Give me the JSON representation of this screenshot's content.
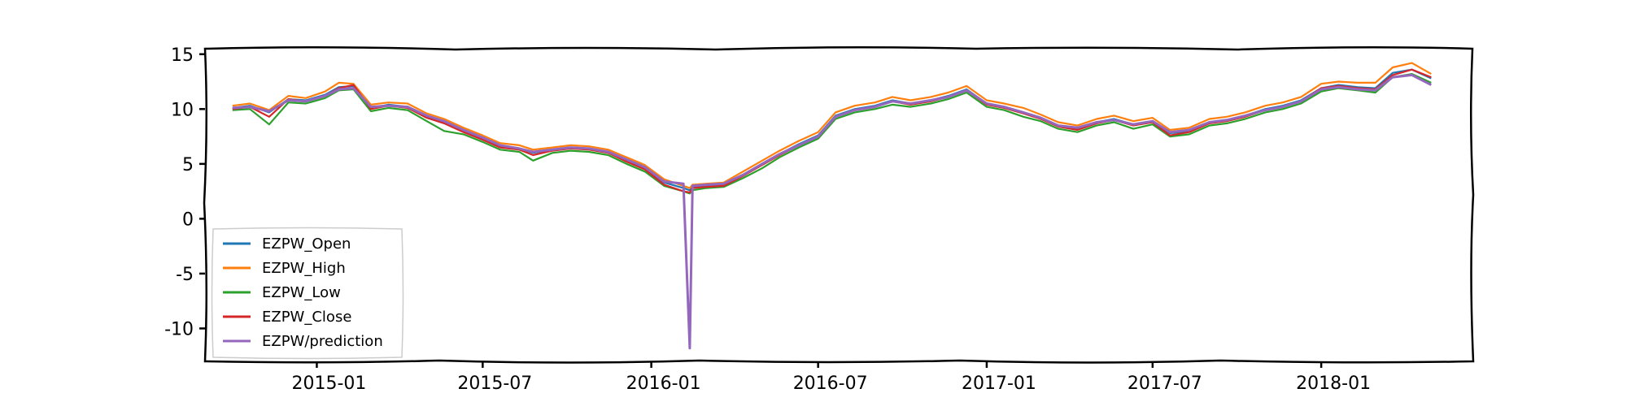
{
  "chart_data": {
    "type": "line",
    "title": "",
    "xlabel": "",
    "ylabel": "",
    "xlim": [
      "2014-09-01",
      "2018-06-15"
    ],
    "ylim": [
      -13,
      15.5
    ],
    "x_ticks": [
      "2015-01",
      "2015-07",
      "2016-01",
      "2016-07",
      "2017-01",
      "2017-07",
      "2018-01"
    ],
    "y_ticks": [
      "15",
      "10",
      "5",
      "0",
      "-5",
      "-10"
    ],
    "y_tick_values": [
      15,
      10,
      5,
      0,
      -5,
      -10
    ],
    "grid": false,
    "legend_position": "lower-left",
    "x": [
      "2014-10-01",
      "2014-10-20",
      "2014-11-10",
      "2014-12-01",
      "2014-12-20",
      "2015-01-10",
      "2015-01-25",
      "2015-02-10",
      "2015-03-01",
      "2015-03-20",
      "2015-04-10",
      "2015-05-01",
      "2015-05-20",
      "2015-06-10",
      "2015-07-01",
      "2015-07-20",
      "2015-08-10",
      "2015-08-25",
      "2015-09-15",
      "2015-10-05",
      "2015-10-25",
      "2015-11-15",
      "2015-12-05",
      "2015-12-25",
      "2016-01-15",
      "2016-02-05",
      "2016-02-12",
      "2016-02-15",
      "2016-03-01",
      "2016-03-20",
      "2016-04-10",
      "2016-05-01",
      "2016-05-20",
      "2016-06-10",
      "2016-07-01",
      "2016-07-20",
      "2016-08-10",
      "2016-09-01",
      "2016-09-20",
      "2016-10-10",
      "2016-11-01",
      "2016-11-20",
      "2016-12-10",
      "2017-01-01",
      "2017-01-20",
      "2017-02-10",
      "2017-03-01",
      "2017-03-20",
      "2017-04-10",
      "2017-05-01",
      "2017-05-20",
      "2017-06-10",
      "2017-07-01",
      "2017-07-20",
      "2017-08-10",
      "2017-09-01",
      "2017-09-20",
      "2017-10-10",
      "2017-11-01",
      "2017-11-20",
      "2017-12-10",
      "2018-01-01",
      "2018-01-20",
      "2018-02-10",
      "2018-03-01",
      "2018-03-20",
      "2018-04-10",
      "2018-05-01"
    ],
    "series": [
      {
        "name": "EZPW_Open",
        "color": "#1f77b4",
        "values": [
          10.1,
          10.3,
          9.7,
          10.9,
          10.8,
          11.3,
          12.0,
          12.1,
          10.1,
          10.4,
          10.2,
          9.3,
          8.8,
          8.0,
          7.3,
          6.6,
          6.4,
          6.0,
          6.3,
          6.5,
          6.4,
          6.1,
          5.3,
          4.6,
          3.3,
          2.8,
          2.6,
          2.9,
          3.0,
          3.1,
          4.0,
          5.0,
          5.9,
          6.8,
          7.6,
          9.4,
          10.0,
          10.3,
          10.8,
          10.5,
          10.8,
          11.2,
          11.8,
          10.5,
          10.2,
          9.7,
          9.2,
          8.5,
          8.2,
          8.8,
          9.1,
          8.6,
          8.9,
          7.8,
          8.0,
          8.8,
          9.0,
          9.4,
          10.0,
          10.3,
          10.8,
          11.9,
          12.2,
          12.0,
          11.9,
          13.3,
          13.6,
          12.8
        ]
      },
      {
        "name": "EZPW_High",
        "color": "#ff7f0e",
        "values": [
          10.3,
          10.5,
          9.9,
          11.2,
          11.0,
          11.6,
          12.4,
          12.3,
          10.4,
          10.6,
          10.5,
          9.6,
          9.1,
          8.3,
          7.6,
          6.9,
          6.7,
          6.3,
          6.5,
          6.7,
          6.6,
          6.3,
          5.6,
          4.9,
          3.6,
          3.0,
          2.8,
          3.1,
          3.2,
          3.3,
          4.3,
          5.3,
          6.2,
          7.1,
          7.9,
          9.7,
          10.3,
          10.6,
          11.1,
          10.8,
          11.1,
          11.5,
          12.1,
          10.8,
          10.5,
          10.1,
          9.5,
          8.8,
          8.5,
          9.1,
          9.4,
          8.9,
          9.2,
          8.1,
          8.3,
          9.1,
          9.3,
          9.7,
          10.3,
          10.6,
          11.1,
          12.3,
          12.5,
          12.4,
          12.4,
          13.8,
          14.2,
          13.2
        ]
      },
      {
        "name": "EZPW_Low",
        "color": "#2ca02c",
        "values": [
          9.9,
          10.0,
          8.6,
          10.6,
          10.5,
          11.0,
          11.7,
          11.8,
          9.8,
          10.1,
          9.9,
          8.9,
          8.0,
          7.7,
          7.0,
          6.3,
          6.1,
          5.3,
          6.0,
          6.2,
          6.1,
          5.8,
          5.0,
          4.3,
          3.0,
          2.5,
          2.3,
          2.6,
          2.8,
          2.9,
          3.7,
          4.6,
          5.6,
          6.5,
          7.3,
          9.1,
          9.7,
          10.0,
          10.4,
          10.2,
          10.5,
          10.9,
          11.5,
          10.2,
          9.9,
          9.3,
          8.9,
          8.2,
          7.9,
          8.5,
          8.8,
          8.2,
          8.6,
          7.5,
          7.7,
          8.5,
          8.7,
          9.1,
          9.7,
          10.0,
          10.5,
          11.6,
          11.9,
          11.7,
          11.5,
          12.9,
          13.2,
          12.4
        ]
      },
      {
        "name": "EZPW_Close",
        "color": "#d62728",
        "values": [
          10.0,
          10.2,
          9.3,
          10.9,
          10.7,
          11.2,
          11.9,
          12.2,
          10.0,
          10.3,
          10.1,
          9.2,
          8.7,
          7.9,
          7.2,
          6.5,
          6.3,
          5.8,
          6.2,
          6.4,
          6.3,
          6.0,
          5.2,
          4.5,
          3.1,
          2.5,
          2.4,
          2.8,
          2.9,
          3.0,
          3.9,
          4.9,
          5.8,
          6.7,
          7.5,
          9.3,
          9.9,
          10.2,
          10.7,
          10.4,
          10.7,
          11.1,
          11.7,
          10.4,
          10.1,
          9.6,
          9.1,
          8.4,
          8.1,
          8.7,
          9.0,
          8.5,
          8.8,
          7.6,
          7.9,
          8.7,
          8.9,
          9.3,
          9.9,
          10.2,
          10.7,
          11.9,
          12.1,
          11.9,
          11.8,
          13.1,
          13.6,
          12.9
        ]
      },
      {
        "name": "EZPW/prediction",
        "color": "#9467bd",
        "values": [
          10.1,
          10.2,
          9.8,
          10.8,
          10.7,
          11.2,
          11.8,
          11.9,
          10.2,
          10.3,
          10.2,
          9.4,
          8.9,
          8.1,
          7.4,
          6.7,
          6.4,
          6.1,
          6.3,
          6.5,
          6.4,
          6.1,
          5.4,
          4.7,
          3.4,
          3.2,
          -11.8,
          3.0,
          3.1,
          3.2,
          4.0,
          5.0,
          5.9,
          6.7,
          7.5,
          9.3,
          9.9,
          10.2,
          10.7,
          10.5,
          10.8,
          11.1,
          11.7,
          10.5,
          10.2,
          9.7,
          9.2,
          8.5,
          8.3,
          8.8,
          9.0,
          8.6,
          8.9,
          7.9,
          8.1,
          8.8,
          9.0,
          9.4,
          9.9,
          10.2,
          10.7,
          11.8,
          12.0,
          11.8,
          11.7,
          12.9,
          13.1,
          12.2
        ]
      }
    ]
  }
}
